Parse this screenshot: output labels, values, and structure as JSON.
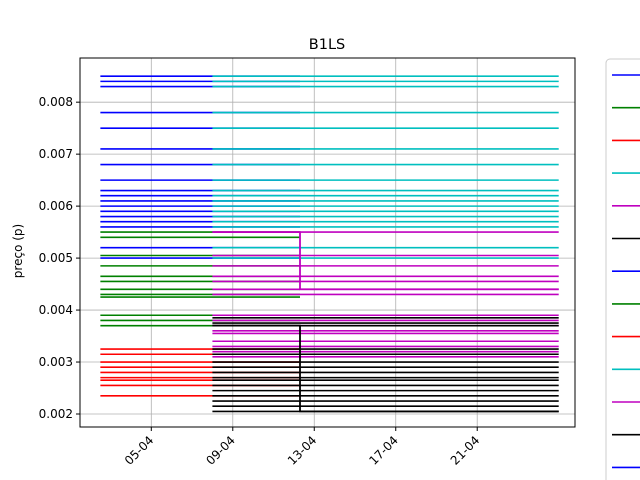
{
  "chart_data": {
    "type": "line",
    "title": "B1LS",
    "xlabel": "",
    "ylabel": "preço (p)",
    "x_ticks": [
      "05-04",
      "09-04",
      "13-04",
      "17-04",
      "21-04"
    ],
    "x_tick_days": [
      5,
      9,
      13,
      17,
      21
    ],
    "xlim": [
      1.5,
      25.8
    ],
    "y_ticks": [
      0.002,
      0.003,
      0.004,
      0.005,
      0.006,
      0.007,
      0.008
    ],
    "ylim": [
      0.00175,
      0.00885
    ],
    "grid": true,
    "legend_placement": "right (outside plot)",
    "legend_colors": [
      "#0000ff",
      "#008000",
      "#ff0000",
      "#00bfbf",
      "#bf00bf",
      "#000000",
      "#0000ff",
      "#008000",
      "#ff0000",
      "#00bfbf",
      "#bf00bf",
      "#000000",
      "#0000ff"
    ],
    "levels": {
      "blue": [
        0.0085,
        0.0084,
        0.0083,
        0.0078,
        0.0075,
        0.0071,
        0.0068,
        0.0065,
        0.0063,
        0.0062,
        0.0061,
        0.006,
        0.0059,
        0.0058,
        0.0057,
        0.0056,
        0.0052,
        0.005
      ],
      "green": [
        0.0055,
        0.0054,
        0.00505,
        0.00485,
        0.00465,
        0.00455,
        0.0044,
        0.0043,
        0.00425,
        0.0039,
        0.0038,
        0.0037
      ],
      "red": [
        0.00325,
        0.00315,
        0.003,
        0.0029,
        0.0028,
        0.0027,
        0.00265,
        0.00255,
        0.00235
      ],
      "magenta": [
        0.0055,
        0.00505,
        0.00485,
        0.00465,
        0.00455,
        0.0044,
        0.0043,
        0.0039,
        0.0038,
        0.0037,
        0.0036,
        0.00355,
        0.0034,
        0.0033,
        0.0032,
        0.0031
      ],
      "black": [
        0.00385,
        0.00375,
        0.0037,
        0.00325,
        0.00315,
        0.003,
        0.0029,
        0.0028,
        0.0027,
        0.00265,
        0.00255,
        0.00235,
        0.00245,
        0.00225,
        0.00215,
        0.00205
      ]
    },
    "series": [
      {
        "color": "#0000ff",
        "x_range": [
          2.5,
          12.3
        ],
        "levels_ref": "blue"
      },
      {
        "color": "#008000",
        "x_range": [
          2.5,
          12.3
        ],
        "levels_ref": "green"
      },
      {
        "color": "#ff0000",
        "x_range": [
          2.5,
          12.3
        ],
        "levels_ref": "red"
      },
      {
        "color": "#00bfbf",
        "x_range": [
          8.0,
          25.0
        ],
        "levels_ref": "blue"
      },
      {
        "color": "#bf00bf",
        "x_range": [
          8.0,
          25.0
        ],
        "levels_ref": "magenta"
      },
      {
        "color": "#000000",
        "x_range": [
          8.0,
          25.0
        ],
        "levels_ref": "black"
      }
    ],
    "step_lines": [
      {
        "color": "#bf00bf",
        "points": [
          [
            8.0,
            0.0055
          ],
          [
            12.3,
            0.0055
          ],
          [
            12.3,
            0.0044
          ],
          [
            25.0,
            0.0044
          ]
        ]
      },
      {
        "color": "#000000",
        "points": [
          [
            8.0,
            0.0037
          ],
          [
            12.3,
            0.0037
          ],
          [
            12.3,
            0.00205
          ],
          [
            25.0,
            0.00205
          ]
        ]
      }
    ]
  }
}
